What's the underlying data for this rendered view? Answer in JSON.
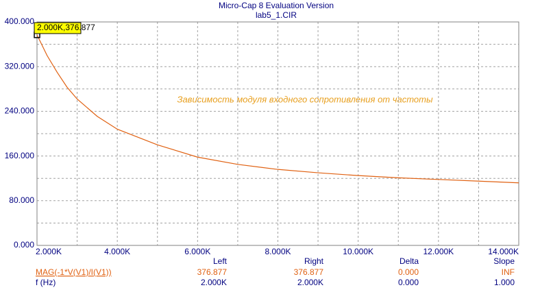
{
  "chart_data": {
    "type": "line",
    "title": "Micro-Cap 8 Evaluation Version",
    "subtitle": "lab5_1.CIR",
    "annotation": "Зависимость модуля входного сопротивления от частоты",
    "cursor_label": "2.000K,376.877",
    "x": [
      2000,
      2250,
      2500,
      2750,
      3000,
      3500,
      4000,
      5000,
      6000,
      7000,
      8000,
      9000,
      10000,
      11000,
      12000,
      13000,
      14000
    ],
    "series": [
      {
        "name": "MAG(-1*V(V1)/I(V1))",
        "color": "#e06010",
        "values": [
          376.877,
          340,
          310,
          283,
          262,
          231,
          208,
          180,
          158,
          145,
          136,
          130,
          125,
          121,
          118,
          115,
          112
        ]
      }
    ],
    "xlim": [
      2000,
      14000
    ],
    "xticks": [
      {
        "value": 2000,
        "label": "2.000K"
      },
      {
        "value": 4000,
        "label": "4.000K"
      },
      {
        "value": 6000,
        "label": "6.000K"
      },
      {
        "value": 8000,
        "label": "8.000K"
      },
      {
        "value": 10000,
        "label": "10.000K"
      },
      {
        "value": 12000,
        "label": "12.000K"
      },
      {
        "value": 14000,
        "label": "14.000K"
      }
    ],
    "xgrid": [
      3000,
      5000,
      7000,
      9000,
      11000,
      13000
    ],
    "ylim": [
      0,
      400
    ],
    "yticks": [
      {
        "value": 0,
        "label": "0.000"
      },
      {
        "value": 80,
        "label": "80.000"
      },
      {
        "value": 160,
        "label": "160.000"
      },
      {
        "value": 240,
        "label": "240.000"
      },
      {
        "value": 320,
        "label": "320.000"
      },
      {
        "value": 400,
        "label": "400.000"
      }
    ],
    "ygrid": [
      40,
      120,
      200,
      280,
      360
    ],
    "grid": true
  },
  "readout": {
    "columns": [
      "Left",
      "Right",
      "Delta",
      "Slope"
    ],
    "rows": [
      {
        "label": "MAG(-1*V(V1)/I(V1))",
        "cells": [
          "376.877",
          "376.877",
          "0.000",
          "INF"
        ]
      },
      {
        "label": "f (Hz)",
        "cells": [
          "2.000K",
          "2.000K",
          "0.000",
          "1.000"
        ]
      }
    ]
  }
}
